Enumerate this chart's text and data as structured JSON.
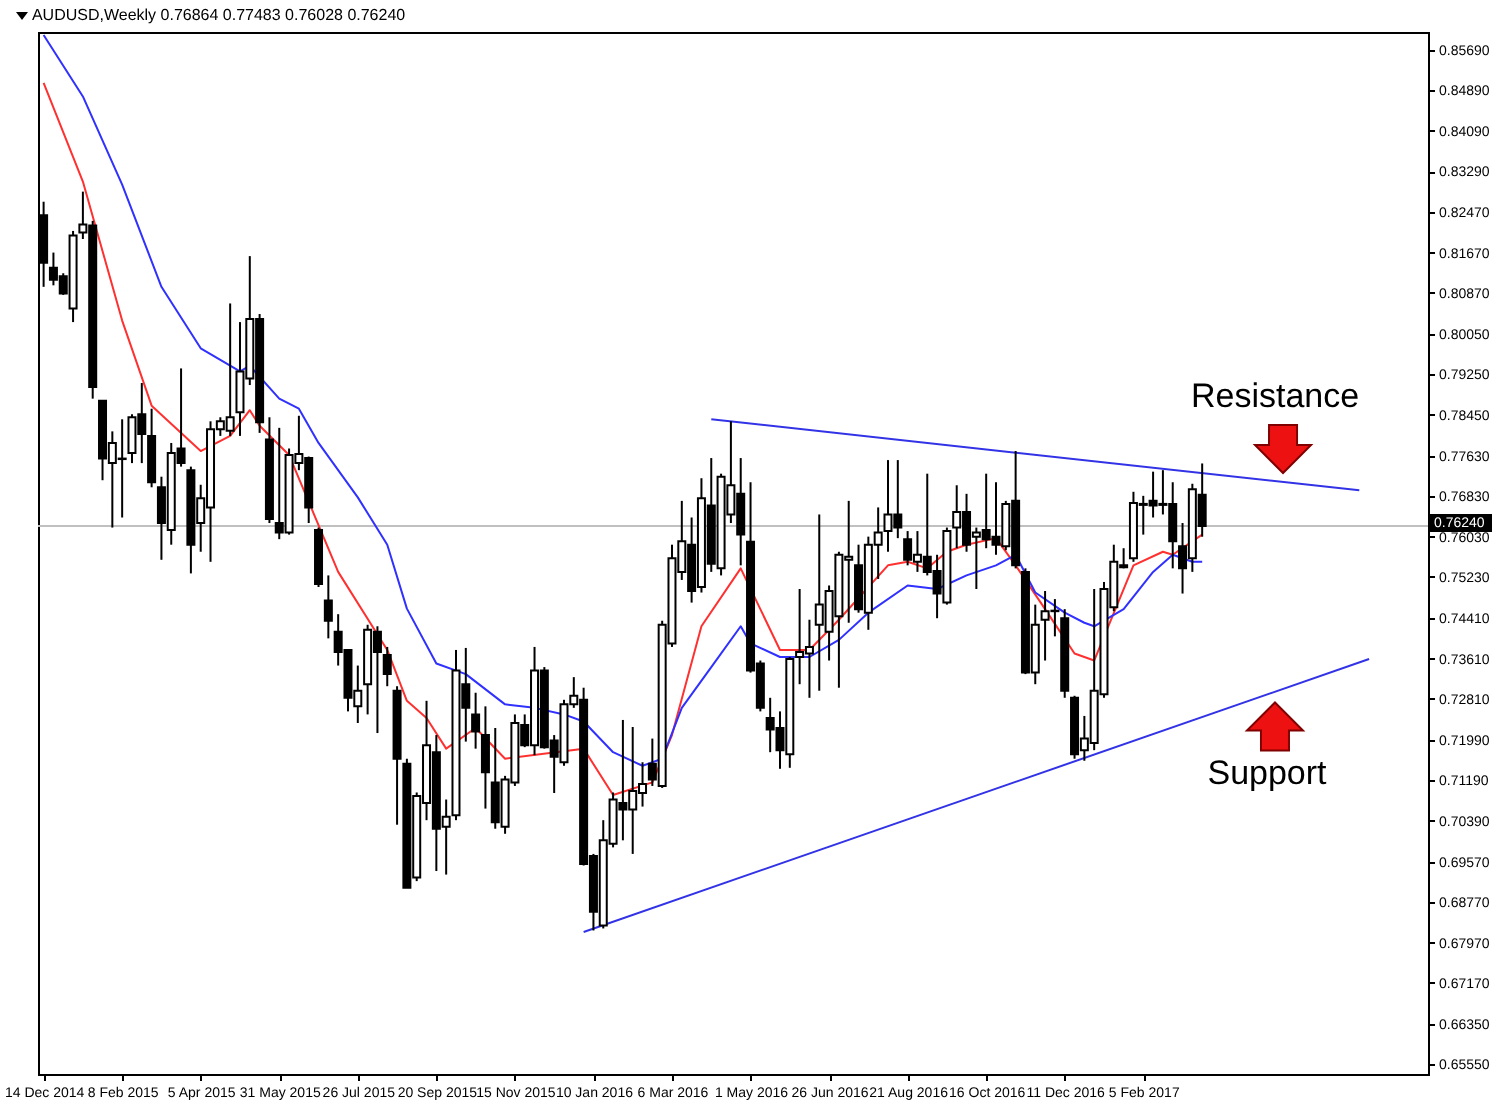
{
  "chart_data": {
    "type": "candlestick",
    "title": "AUDUSD,Weekly  0.76864 0.77483 0.76028 0.76240",
    "x": [
      "2014-12-14",
      "2014-12-21",
      "2014-12-28",
      "2015-01-04",
      "2015-01-11",
      "2015-01-18",
      "2015-01-25",
      "2015-02-01",
      "2015-02-08",
      "2015-02-15",
      "2015-02-22",
      "2015-03-01",
      "2015-03-08",
      "2015-03-15",
      "2015-03-22",
      "2015-03-29",
      "2015-04-05",
      "2015-04-12",
      "2015-04-19",
      "2015-04-26",
      "2015-05-03",
      "2015-05-10",
      "2015-05-17",
      "2015-05-24",
      "2015-05-31",
      "2015-06-07",
      "2015-06-14",
      "2015-06-21",
      "2015-06-28",
      "2015-07-05",
      "2015-07-12",
      "2015-07-19",
      "2015-07-26",
      "2015-08-02",
      "2015-08-09",
      "2015-08-16",
      "2015-08-23",
      "2015-08-30",
      "2015-09-06",
      "2015-09-13",
      "2015-09-20",
      "2015-09-27",
      "2015-10-04",
      "2015-10-11",
      "2015-10-18",
      "2015-10-25",
      "2015-11-01",
      "2015-11-08",
      "2015-11-15",
      "2015-11-22",
      "2015-11-29",
      "2015-12-06",
      "2015-12-13",
      "2015-12-20",
      "2015-12-27",
      "2016-01-03",
      "2016-01-10",
      "2016-01-17",
      "2016-01-24",
      "2016-01-31",
      "2016-02-07",
      "2016-02-14",
      "2016-02-21",
      "2016-02-28",
      "2016-03-06",
      "2016-03-13",
      "2016-03-20",
      "2016-03-27",
      "2016-04-03",
      "2016-04-10",
      "2016-04-17",
      "2016-04-24",
      "2016-05-01",
      "2016-05-08",
      "2016-05-15",
      "2016-05-22",
      "2016-05-29",
      "2016-06-05",
      "2016-06-12",
      "2016-06-19",
      "2016-06-26",
      "2016-07-03",
      "2016-07-10",
      "2016-07-17",
      "2016-07-24",
      "2016-07-31",
      "2016-08-07",
      "2016-08-14",
      "2016-08-21",
      "2016-08-28",
      "2016-09-04",
      "2016-09-11",
      "2016-09-18",
      "2016-09-25",
      "2016-10-02",
      "2016-10-09",
      "2016-10-16",
      "2016-10-23",
      "2016-10-30",
      "2016-11-06",
      "2016-11-13",
      "2016-11-20",
      "2016-11-27",
      "2016-12-04",
      "2016-12-11",
      "2016-12-18",
      "2016-12-25",
      "2017-01-01",
      "2017-01-08",
      "2017-01-15",
      "2017-01-22",
      "2017-01-29",
      "2017-02-05",
      "2017-02-12",
      "2017-02-19",
      "2017-02-26",
      "2017-03-05",
      "2017-03-12",
      "2017-03-19"
    ],
    "ohlc": [
      [
        0.8241,
        0.8268,
        0.8099,
        0.8147
      ],
      [
        0.8137,
        0.8167,
        0.8102,
        0.8113
      ],
      [
        0.812,
        0.8126,
        0.8083,
        0.8086
      ],
      [
        0.8056,
        0.821,
        0.8029,
        0.8201
      ],
      [
        0.8207,
        0.8288,
        0.8194,
        0.8223
      ],
      [
        0.8221,
        0.823,
        0.7877,
        0.79
      ],
      [
        0.7873,
        0.7873,
        0.7715,
        0.7758
      ],
      [
        0.7749,
        0.7812,
        0.7621,
        0.7789
      ],
      [
        0.7758,
        0.7836,
        0.7641,
        0.7757
      ],
      [
        0.7769,
        0.7846,
        0.7749,
        0.784
      ],
      [
        0.7846,
        0.7908,
        0.7749,
        0.7807
      ],
      [
        0.7803,
        0.7857,
        0.7701,
        0.7711
      ],
      [
        0.7701,
        0.7722,
        0.7557,
        0.763
      ],
      [
        0.7616,
        0.7789,
        0.7587,
        0.7769
      ],
      [
        0.7778,
        0.7937,
        0.7742,
        0.7749
      ],
      [
        0.7735,
        0.7742,
        0.753,
        0.7587
      ],
      [
        0.763,
        0.7706,
        0.7573,
        0.7679
      ],
      [
        0.7661,
        0.7832,
        0.7553,
        0.7816
      ],
      [
        0.7816,
        0.784,
        0.7803,
        0.7832
      ],
      [
        0.7813,
        0.8066,
        0.7803,
        0.784
      ],
      [
        0.785,
        0.8029,
        0.7803,
        0.7931
      ],
      [
        0.7917,
        0.816,
        0.7904,
        0.8035
      ],
      [
        0.8035,
        0.8045,
        0.7809,
        0.783
      ],
      [
        0.7796,
        0.784,
        0.763,
        0.7638
      ],
      [
        0.763,
        0.7819,
        0.7598,
        0.7611
      ],
      [
        0.7611,
        0.7778,
        0.7607,
        0.7765
      ],
      [
        0.7749,
        0.7843,
        0.7735,
        0.7767
      ],
      [
        0.7759,
        0.7762,
        0.763,
        0.7661
      ],
      [
        0.7616,
        0.7621,
        0.7503,
        0.7509
      ],
      [
        0.7476,
        0.7526,
        0.7401,
        0.7436
      ],
      [
        0.7414,
        0.7449,
        0.7347,
        0.7374
      ],
      [
        0.7378,
        0.7378,
        0.7256,
        0.7283
      ],
      [
        0.7266,
        0.7347,
        0.7233,
        0.7297
      ],
      [
        0.731,
        0.7428,
        0.725,
        0.7418
      ],
      [
        0.7414,
        0.7425,
        0.7213,
        0.7374
      ],
      [
        0.7368,
        0.7384,
        0.7306,
        0.733
      ],
      [
        0.7297,
        0.7306,
        0.7031,
        0.7162
      ],
      [
        0.7152,
        0.7162,
        0.6906,
        0.6906
      ],
      [
        0.6926,
        0.7095,
        0.6919,
        0.7088
      ],
      [
        0.7074,
        0.7277,
        0.704,
        0.7189
      ],
      [
        0.7175,
        0.7209,
        0.6939,
        0.7023
      ],
      [
        0.7027,
        0.7081,
        0.6932,
        0.7047
      ],
      [
        0.705,
        0.7378,
        0.704,
        0.7337
      ],
      [
        0.731,
        0.7382,
        0.7196,
        0.7263
      ],
      [
        0.725,
        0.7293,
        0.7182,
        0.7216
      ],
      [
        0.7209,
        0.7266,
        0.7063,
        0.7135
      ],
      [
        0.7115,
        0.7223,
        0.7023,
        0.7036
      ],
      [
        0.7027,
        0.7128,
        0.7013,
        0.7121
      ],
      [
        0.7115,
        0.725,
        0.7108,
        0.7233
      ],
      [
        0.7229,
        0.725,
        0.7185,
        0.7189
      ],
      [
        0.7189,
        0.7384,
        0.7169,
        0.7337
      ],
      [
        0.7337,
        0.7344,
        0.7182,
        0.7185
      ],
      [
        0.7198,
        0.7209,
        0.7094,
        0.7166
      ],
      [
        0.7155,
        0.7279,
        0.7148,
        0.727
      ],
      [
        0.727,
        0.7324,
        0.7263,
        0.7287
      ],
      [
        0.7279,
        0.7303,
        0.695,
        0.6953
      ],
      [
        0.6969,
        0.6973,
        0.6821,
        0.6858
      ],
      [
        0.6831,
        0.704,
        0.6825,
        0.7
      ],
      [
        0.6993,
        0.7095,
        0.6986,
        0.7081
      ],
      [
        0.7074,
        0.7239,
        0.7,
        0.7061
      ],
      [
        0.7061,
        0.7225,
        0.6973,
        0.7098
      ],
      [
        0.7094,
        0.7155,
        0.7067,
        0.7112
      ],
      [
        0.7152,
        0.7202,
        0.7108,
        0.7121
      ],
      [
        0.7108,
        0.7436,
        0.7104,
        0.7428
      ],
      [
        0.7391,
        0.7587,
        0.7384,
        0.756
      ],
      [
        0.7533,
        0.7674,
        0.7517,
        0.7594
      ],
      [
        0.7587,
        0.7641,
        0.7472,
        0.7495
      ],
      [
        0.7503,
        0.7719,
        0.7492,
        0.7679
      ],
      [
        0.7665,
        0.7759,
        0.7533,
        0.7549
      ],
      [
        0.754,
        0.7728,
        0.7526,
        0.7722
      ],
      [
        0.7647,
        0.7832,
        0.763,
        0.7705
      ],
      [
        0.7688,
        0.7759,
        0.7546,
        0.7607
      ],
      [
        0.7593,
        0.7711,
        0.7333,
        0.7337
      ],
      [
        0.7351,
        0.7357,
        0.7256,
        0.7263
      ],
      [
        0.7243,
        0.7283,
        0.7175,
        0.722
      ],
      [
        0.7223,
        0.7256,
        0.7142,
        0.7179
      ],
      [
        0.7171,
        0.7364,
        0.7144,
        0.736
      ],
      [
        0.7364,
        0.7499,
        0.731,
        0.7374
      ],
      [
        0.7371,
        0.7438,
        0.7283,
        0.7384
      ],
      [
        0.7428,
        0.7647,
        0.7297,
        0.7468
      ],
      [
        0.7414,
        0.7506,
        0.7357,
        0.7495
      ],
      [
        0.7445,
        0.7573,
        0.7303,
        0.7567
      ],
      [
        0.7557,
        0.7674,
        0.7432,
        0.7563
      ],
      [
        0.7546,
        0.7587,
        0.7452,
        0.7459
      ],
      [
        0.7452,
        0.7603,
        0.7418,
        0.7587
      ],
      [
        0.7587,
        0.7661,
        0.7519,
        0.7611
      ],
      [
        0.7614,
        0.7755,
        0.7573,
        0.7647
      ],
      [
        0.7647,
        0.7755,
        0.76,
        0.7621
      ],
      [
        0.7598,
        0.7614,
        0.7546,
        0.7557
      ],
      [
        0.7553,
        0.7614,
        0.7533,
        0.7567
      ],
      [
        0.7563,
        0.7728,
        0.7526,
        0.7533
      ],
      [
        0.7535,
        0.7567,
        0.7441,
        0.749
      ],
      [
        0.7472,
        0.7621,
        0.7468,
        0.7614
      ],
      [
        0.7621,
        0.7705,
        0.758,
        0.7652
      ],
      [
        0.7652,
        0.7688,
        0.7573,
        0.7587
      ],
      [
        0.7603,
        0.7621,
        0.7499,
        0.7611
      ],
      [
        0.7616,
        0.7728,
        0.758,
        0.7598
      ],
      [
        0.7603,
        0.7711,
        0.7567,
        0.7587
      ],
      [
        0.7584,
        0.7674,
        0.7576,
        0.7668
      ],
      [
        0.7674,
        0.7773,
        0.754,
        0.7546
      ],
      [
        0.7533,
        0.754,
        0.733,
        0.7333
      ],
      [
        0.7333,
        0.7468,
        0.731,
        0.7428
      ],
      [
        0.7438,
        0.7495,
        0.7357,
        0.7455
      ],
      [
        0.7455,
        0.7479,
        0.7405,
        0.7456
      ],
      [
        0.7441,
        0.7459,
        0.7283,
        0.7297
      ],
      [
        0.7283,
        0.7287,
        0.7162,
        0.7171
      ],
      [
        0.7179,
        0.7247,
        0.7158,
        0.7202
      ],
      [
        0.7193,
        0.7499,
        0.7179,
        0.7297
      ],
      [
        0.729,
        0.7513,
        0.7283,
        0.7499
      ],
      [
        0.7463,
        0.7587,
        0.7455,
        0.7553
      ],
      [
        0.7546,
        0.758,
        0.754,
        0.7542
      ],
      [
        0.756,
        0.7692,
        0.7553,
        0.767
      ],
      [
        0.7668,
        0.7684,
        0.7607,
        0.7666
      ],
      [
        0.7674,
        0.7732,
        0.7641,
        0.7665
      ],
      [
        0.7668,
        0.7735,
        0.7647,
        0.7666
      ],
      [
        0.7668,
        0.7711,
        0.754,
        0.7594
      ],
      [
        0.7584,
        0.763,
        0.749,
        0.754
      ],
      [
        0.756,
        0.7708,
        0.7533,
        0.7697
      ],
      [
        0.76864,
        0.77483,
        0.76028,
        0.7624
      ]
    ],
    "series": [
      {
        "type": "line",
        "color": "#ff3030",
        "x": [
          "2014-12-14",
          "2015-01-11",
          "2015-02-08",
          "2015-03-01",
          "2015-04-05",
          "2015-04-26",
          "2015-05-10",
          "2015-05-17",
          "2015-06-07",
          "2015-07-12",
          "2015-08-16",
          "2015-08-30",
          "2015-09-13",
          "2015-09-27",
          "2015-10-18",
          "2015-11-08",
          "2016-01-03",
          "2016-01-24",
          "2016-02-21",
          "2016-03-06",
          "2016-03-27",
          "2016-04-24",
          "2016-05-22",
          "2016-06-12",
          "2016-07-03",
          "2016-08-07",
          "2016-08-21",
          "2016-09-04",
          "2016-09-18",
          "2016-10-02",
          "2016-10-23",
          "2016-11-06",
          "2016-11-27",
          "2016-12-18",
          "2017-01-01",
          "2017-01-29",
          "2017-02-19",
          "2017-02-26",
          "2017-03-19"
        ],
        "values": [
          0.8504,
          0.8308,
          0.8032,
          0.7863,
          0.7773,
          0.7803,
          0.7854,
          0.7823,
          0.7765,
          0.7533,
          0.7378,
          0.7277,
          0.7243,
          0.7182,
          0.7223,
          0.7162,
          0.7182,
          0.709,
          0.7115,
          0.7209,
          0.7425,
          0.754,
          0.7378,
          0.7378,
          0.7438,
          0.7546,
          0.7553,
          0.754,
          0.7573,
          0.7587,
          0.76,
          0.7546,
          0.7459,
          0.7371,
          0.7357,
          0.7546,
          0.7573,
          0.7567,
          0.7607
        ]
      },
      {
        "type": "line",
        "color": "#3030ff",
        "x": [
          "2014-12-14",
          "2015-01-11",
          "2015-02-08",
          "2015-03-08",
          "2015-04-05",
          "2015-05-03",
          "2015-05-10",
          "2015-05-31",
          "2015-06-14",
          "2015-06-28",
          "2015-07-26",
          "2015-08-16",
          "2015-08-30",
          "2015-09-20",
          "2015-10-11",
          "2015-11-08",
          "2015-11-29",
          "2015-12-20",
          "2016-01-03",
          "2016-01-24",
          "2016-02-14",
          "2016-02-28",
          "2016-03-13",
          "2016-04-03",
          "2016-04-24",
          "2016-05-01",
          "2016-05-22",
          "2016-06-12",
          "2016-07-03",
          "2016-07-24",
          "2016-08-21",
          "2016-09-11",
          "2016-10-02",
          "2016-10-23",
          "2016-11-06",
          "2016-11-20",
          "2016-12-11",
          "2016-12-25",
          "2017-01-01",
          "2017-01-22",
          "2017-02-12",
          "2017-02-26",
          "2017-03-12",
          "2017-03-19"
        ],
        "values": [
          0.8599,
          0.8477,
          0.8302,
          0.8099,
          0.7977,
          0.7931,
          0.7942,
          0.7877,
          0.7857,
          0.7789,
          0.7681,
          0.7587,
          0.746,
          0.7351,
          0.733,
          0.727,
          0.7263,
          0.725,
          0.7236,
          0.7175,
          0.7148,
          0.7162,
          0.7263,
          0.7344,
          0.7425,
          0.7391,
          0.7364,
          0.7364,
          0.7398,
          0.7452,
          0.7506,
          0.7499,
          0.7526,
          0.7546,
          0.7567,
          0.7492,
          0.7452,
          0.7432,
          0.7425,
          0.7459,
          0.7533,
          0.7567,
          0.7553,
          0.7553
        ]
      },
      {
        "type": "line",
        "color": "#3232e6",
        "x": [
          "2016-04-03",
          "2017-07-09"
        ],
        "values": [
          0.7836,
          0.7695
        ]
      },
      {
        "type": "line",
        "color": "#3232e6",
        "x": [
          "2016-01-03",
          "2017-07-16"
        ],
        "values": [
          0.6818,
          0.736
        ]
      }
    ],
    "xlim": [
      "2014-12-10",
      "2017-08-27"
    ],
    "xticks": [
      {
        "value": "2014-12-14",
        "label": "14 Dec 2014"
      },
      {
        "value": "2015-02-08",
        "label": "8 Feb 2015"
      },
      {
        "value": "2015-04-05",
        "label": "5 Apr 2015"
      },
      {
        "value": "2015-05-31",
        "label": "31 May 2015"
      },
      {
        "value": "2015-07-26",
        "label": "26 Jul 2015"
      },
      {
        "value": "2015-09-20",
        "label": "20 Sep 2015"
      },
      {
        "value": "2015-11-15",
        "label": "15 Nov 2015"
      },
      {
        "value": "2016-01-10",
        "label": "10 Jan 2016"
      },
      {
        "value": "2016-03-06",
        "label": "6 Mar 2016"
      },
      {
        "value": "2016-05-01",
        "label": "1 May 2016"
      },
      {
        "value": "2016-06-26",
        "label": "26 Jun 2016"
      },
      {
        "value": "2016-08-21",
        "label": "21 Aug 2016"
      },
      {
        "value": "2016-10-16",
        "label": "16 Oct 2016"
      },
      {
        "value": "2016-12-11",
        "label": "11 Dec 2016"
      },
      {
        "value": "2017-02-05",
        "label": "5 Feb 2017"
      }
    ],
    "ylim": [
      0.6536,
      0.8605
    ],
    "yticks": [
      {
        "value": 0.6555,
        "label": "0.65550"
      },
      {
        "value": 0.6635,
        "label": "0.66350"
      },
      {
        "value": 0.6717,
        "label": "0.67170"
      },
      {
        "value": 0.6797,
        "label": "0.67970"
      },
      {
        "value": 0.6877,
        "label": "0.68770"
      },
      {
        "value": 0.6957,
        "label": "0.69570"
      },
      {
        "value": 0.7039,
        "label": "0.70390"
      },
      {
        "value": 0.7119,
        "label": "0.71190"
      },
      {
        "value": 0.7199,
        "label": "0.71990"
      },
      {
        "value": 0.7281,
        "label": "0.72810"
      },
      {
        "value": 0.7361,
        "label": "0.73610"
      },
      {
        "value": 0.7441,
        "label": "0.74410"
      },
      {
        "value": 0.7523,
        "label": "0.75230"
      },
      {
        "value": 0.7603,
        "label": "0.76030"
      },
      {
        "value": 0.7683,
        "label": "0.76830"
      },
      {
        "value": 0.7763,
        "label": "0.77630"
      },
      {
        "value": 0.7845,
        "label": "0.78450"
      },
      {
        "value": 0.7925,
        "label": "0.79250"
      },
      {
        "value": 0.8005,
        "label": "0.80050"
      },
      {
        "value": 0.8087,
        "label": "0.80870"
      },
      {
        "value": 0.8167,
        "label": "0.81670"
      },
      {
        "value": 0.8247,
        "label": "0.82470"
      },
      {
        "value": 0.8329,
        "label": "0.83290"
      },
      {
        "value": 0.8409,
        "label": "0.84090"
      },
      {
        "value": 0.8489,
        "label": "0.84890"
      },
      {
        "value": 0.8569,
        "label": "0.85690"
      }
    ],
    "ref_lines": [
      {
        "axis": "y",
        "value": 0.7624,
        "label": "0.76240",
        "color": "#c0c0c0"
      }
    ],
    "annotations": [
      "Resistance",
      "Support"
    ]
  }
}
